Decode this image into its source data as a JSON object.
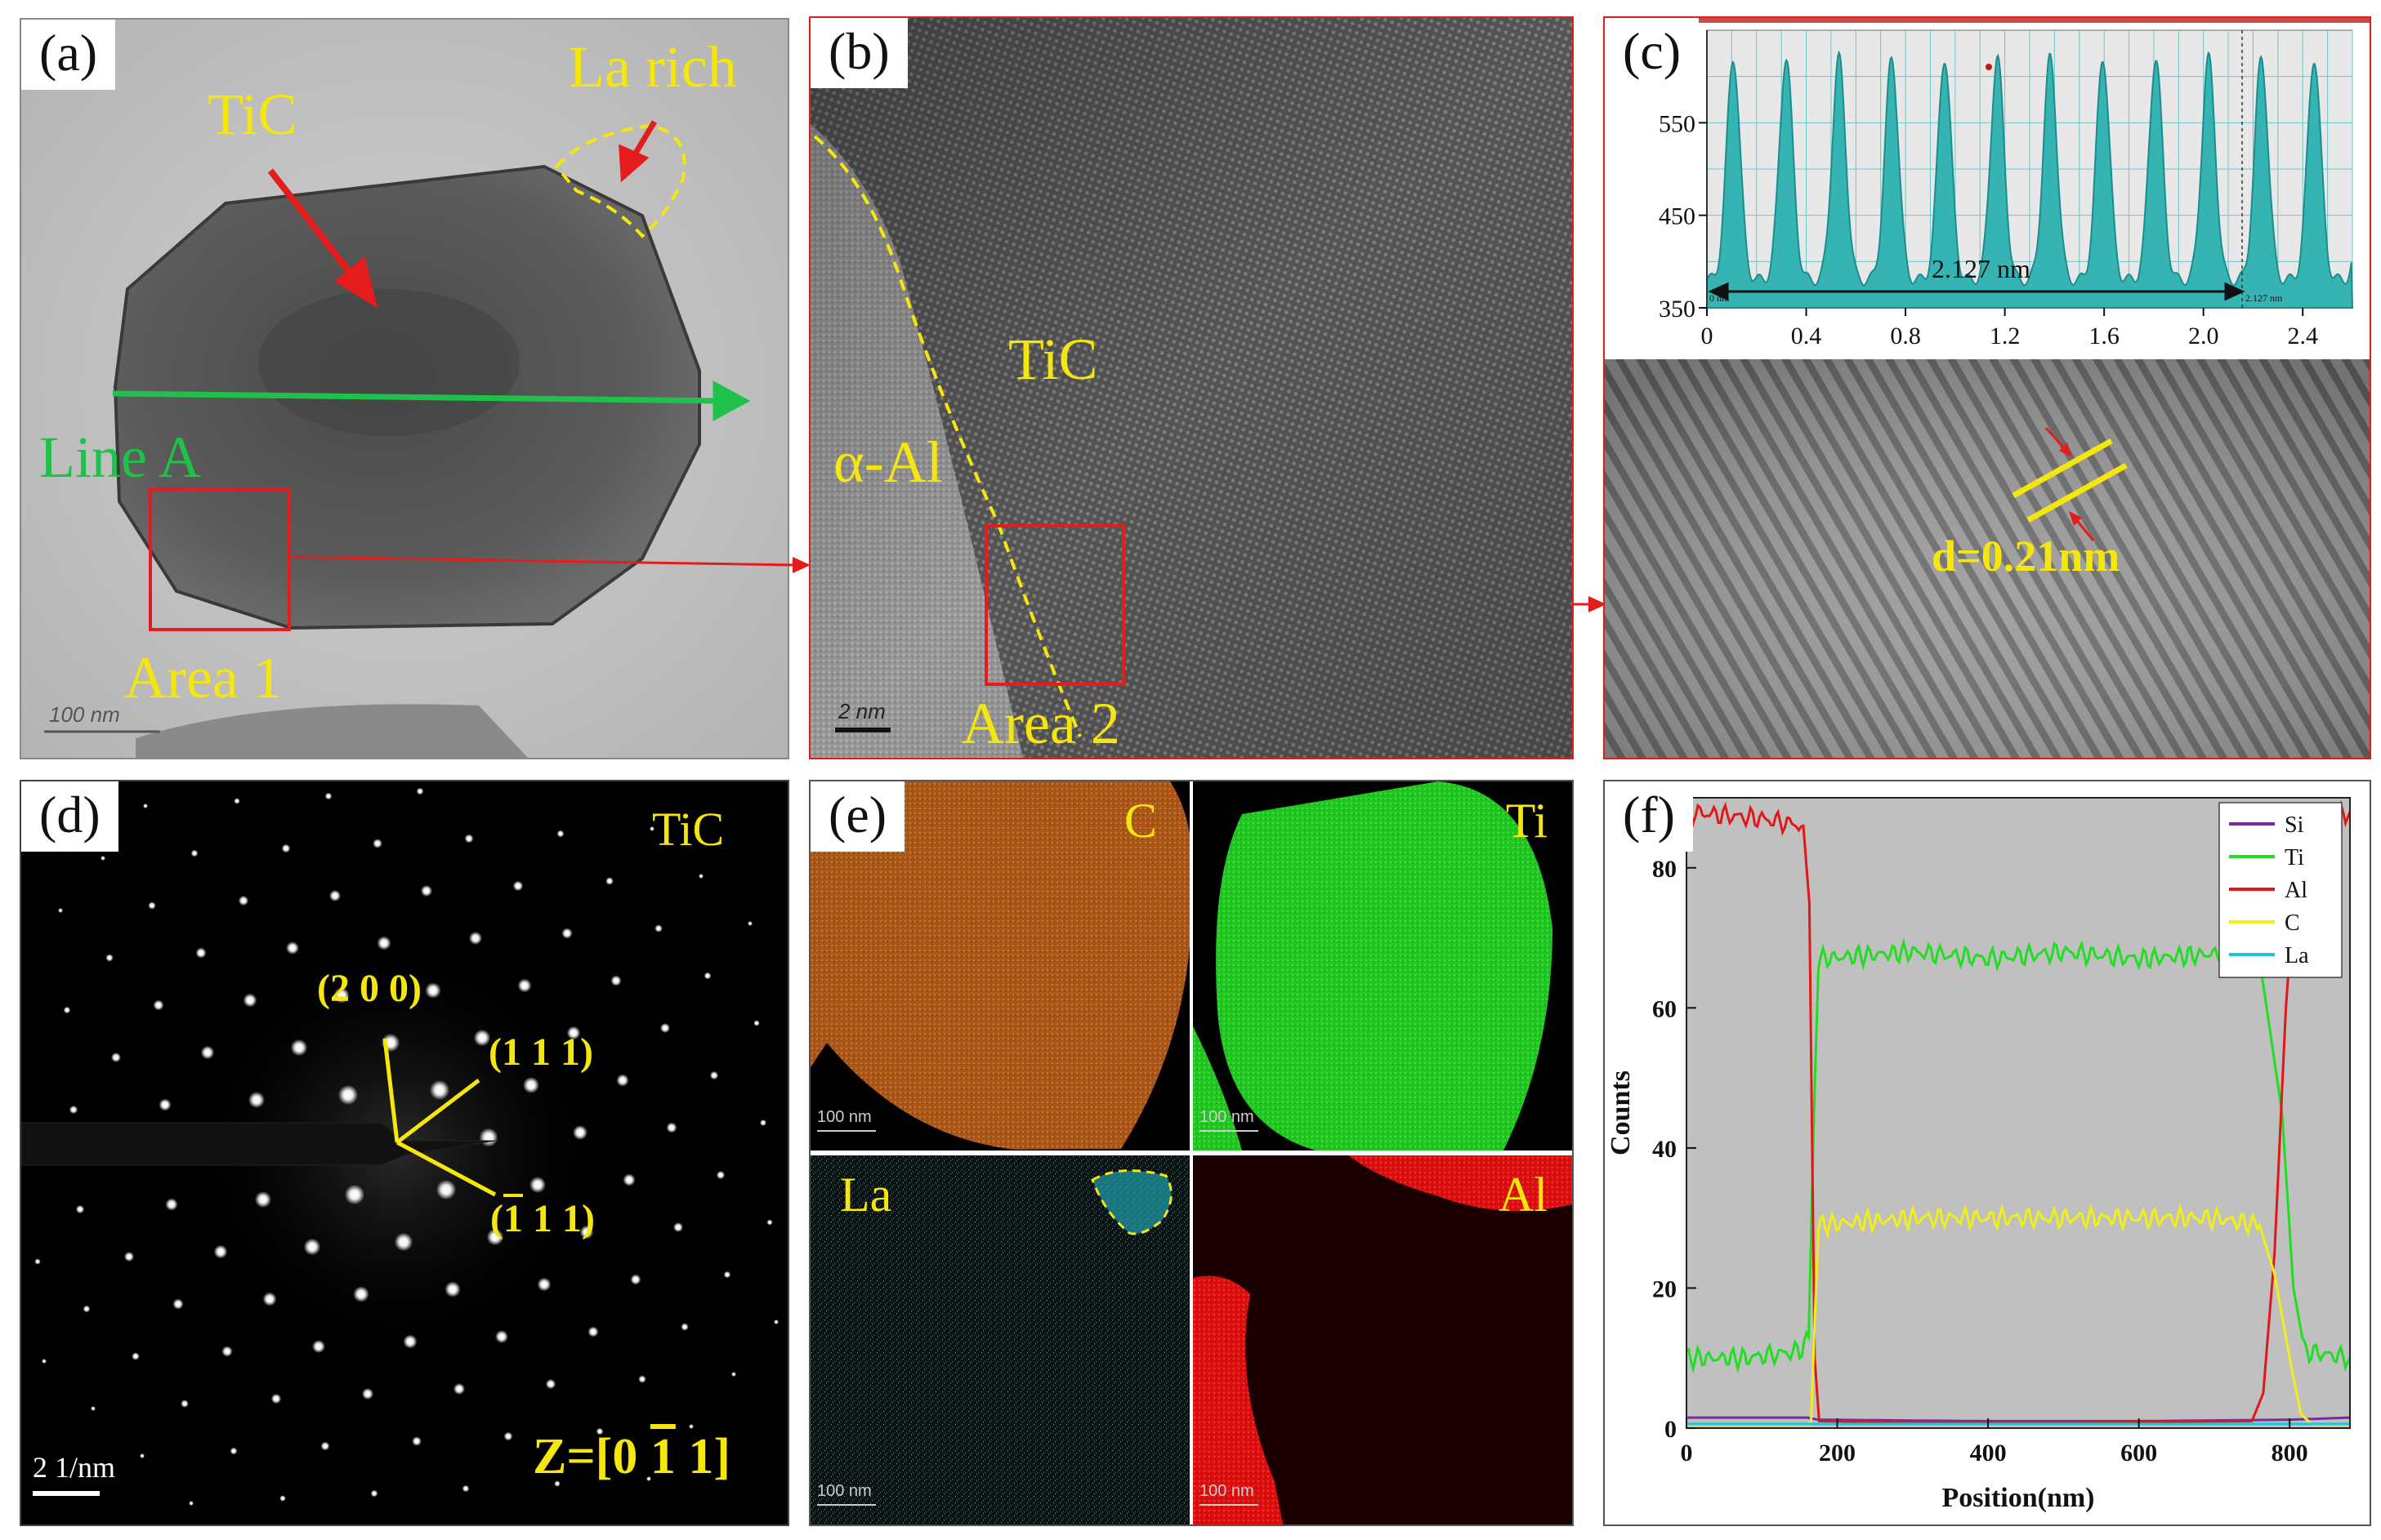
{
  "panels": {
    "a": {
      "label": "(a)",
      "tic": "TiC",
      "la_rich": "La rich",
      "line_a": "Line A",
      "area": "Area 1",
      "scale": "100 nm"
    },
    "b": {
      "label": "(b)",
      "tic": "TiC",
      "alpha_al": "α-Al",
      "area": "Area 2",
      "scale": "2 nm"
    },
    "c": {
      "label": "(c)",
      "d_spacing": "d=0.21nm",
      "profile": {
        "x_ticks": [
          "0",
          "0.4",
          "0.8",
          "1.2",
          "1.6",
          "2.0",
          "2.4"
        ],
        "y_ticks": [
          "550",
          "450",
          "350"
        ],
        "measure": "2.127 nm",
        "measure_small_left": "0 nm",
        "measure_small_right": "2.127 nm"
      }
    },
    "d": {
      "label": "(d)",
      "phase": "TiC",
      "zone_prefix": "Z=[0 ",
      "zone_bar": "1",
      "zone_suffix": " 1]",
      "spot_200": "(2 0 0)",
      "spot_111": "(1 1 1)",
      "spot_m111_bar": "1",
      "spot_m111_rest": " 1 1)",
      "spot_m111_open": "(",
      "scale": "2 1/nm"
    },
    "e": {
      "label": "(e)",
      "maps": [
        {
          "element": "C",
          "scale": "100 nm",
          "color": "#c0661a"
        },
        {
          "element": "Ti",
          "scale": "100 nm",
          "color": "#22cc22"
        },
        {
          "element": "La",
          "scale": "100 nm",
          "color": "#2ab5c0"
        },
        {
          "element": "Al",
          "scale": "100 nm",
          "color": "#e01010"
        }
      ]
    },
    "f": {
      "label": "(f)"
    }
  },
  "chart_data": {
    "type": "line",
    "xlabel": "Position(nm)",
    "ylabel": "Counts",
    "xlim": [
      0,
      880
    ],
    "ylim": [
      0,
      90
    ],
    "x_ticks": [
      0,
      200,
      400,
      600,
      800
    ],
    "y_ticks": [
      0,
      20,
      40,
      60,
      80
    ],
    "legend_position": "top-right",
    "series": [
      {
        "name": "Si",
        "color": "#7a2aa0",
        "points": [
          [
            0,
            1.5
          ],
          [
            160,
            1.5
          ],
          [
            175,
            1.2
          ],
          [
            400,
            1.0
          ],
          [
            600,
            1.0
          ],
          [
            800,
            1.2
          ],
          [
            880,
            1.5
          ]
        ]
      },
      {
        "name": "Ti",
        "color": "#22dd22",
        "points": [
          [
            0,
            10
          ],
          [
            80,
            10
          ],
          [
            150,
            11
          ],
          [
            162,
            13
          ],
          [
            168,
            40
          ],
          [
            175,
            67
          ],
          [
            300,
            68
          ],
          [
            400,
            67
          ],
          [
            500,
            68
          ],
          [
            600,
            67
          ],
          [
            740,
            68
          ],
          [
            760,
            67
          ],
          [
            790,
            45
          ],
          [
            805,
            20
          ],
          [
            820,
            11
          ],
          [
            880,
            10
          ]
        ]
      },
      {
        "name": "Al",
        "color": "#e01818",
        "points": [
          [
            0,
            88
          ],
          [
            100,
            87
          ],
          [
            155,
            86
          ],
          [
            163,
            75
          ],
          [
            170,
            10
          ],
          [
            176,
            1
          ],
          [
            300,
            0.8
          ],
          [
            500,
            0.8
          ],
          [
            750,
            1
          ],
          [
            765,
            5
          ],
          [
            780,
            25
          ],
          [
            795,
            60
          ],
          [
            810,
            82
          ],
          [
            830,
            86
          ],
          [
            880,
            88
          ]
        ]
      },
      {
        "name": "C",
        "color": "#f0f018",
        "points": [
          [
            0,
            0.5
          ],
          [
            165,
            0.5
          ],
          [
            170,
            15
          ],
          [
            175,
            29
          ],
          [
            300,
            30
          ],
          [
            400,
            30
          ],
          [
            500,
            30
          ],
          [
            600,
            30
          ],
          [
            700,
            30
          ],
          [
            760,
            29
          ],
          [
            780,
            22
          ],
          [
            800,
            10
          ],
          [
            815,
            2
          ],
          [
            830,
            0.5
          ],
          [
            880,
            0.5
          ]
        ]
      },
      {
        "name": "La",
        "color": "#18c8d8",
        "points": [
          [
            0,
            0.6
          ],
          [
            880,
            0.6
          ]
        ]
      }
    ]
  }
}
